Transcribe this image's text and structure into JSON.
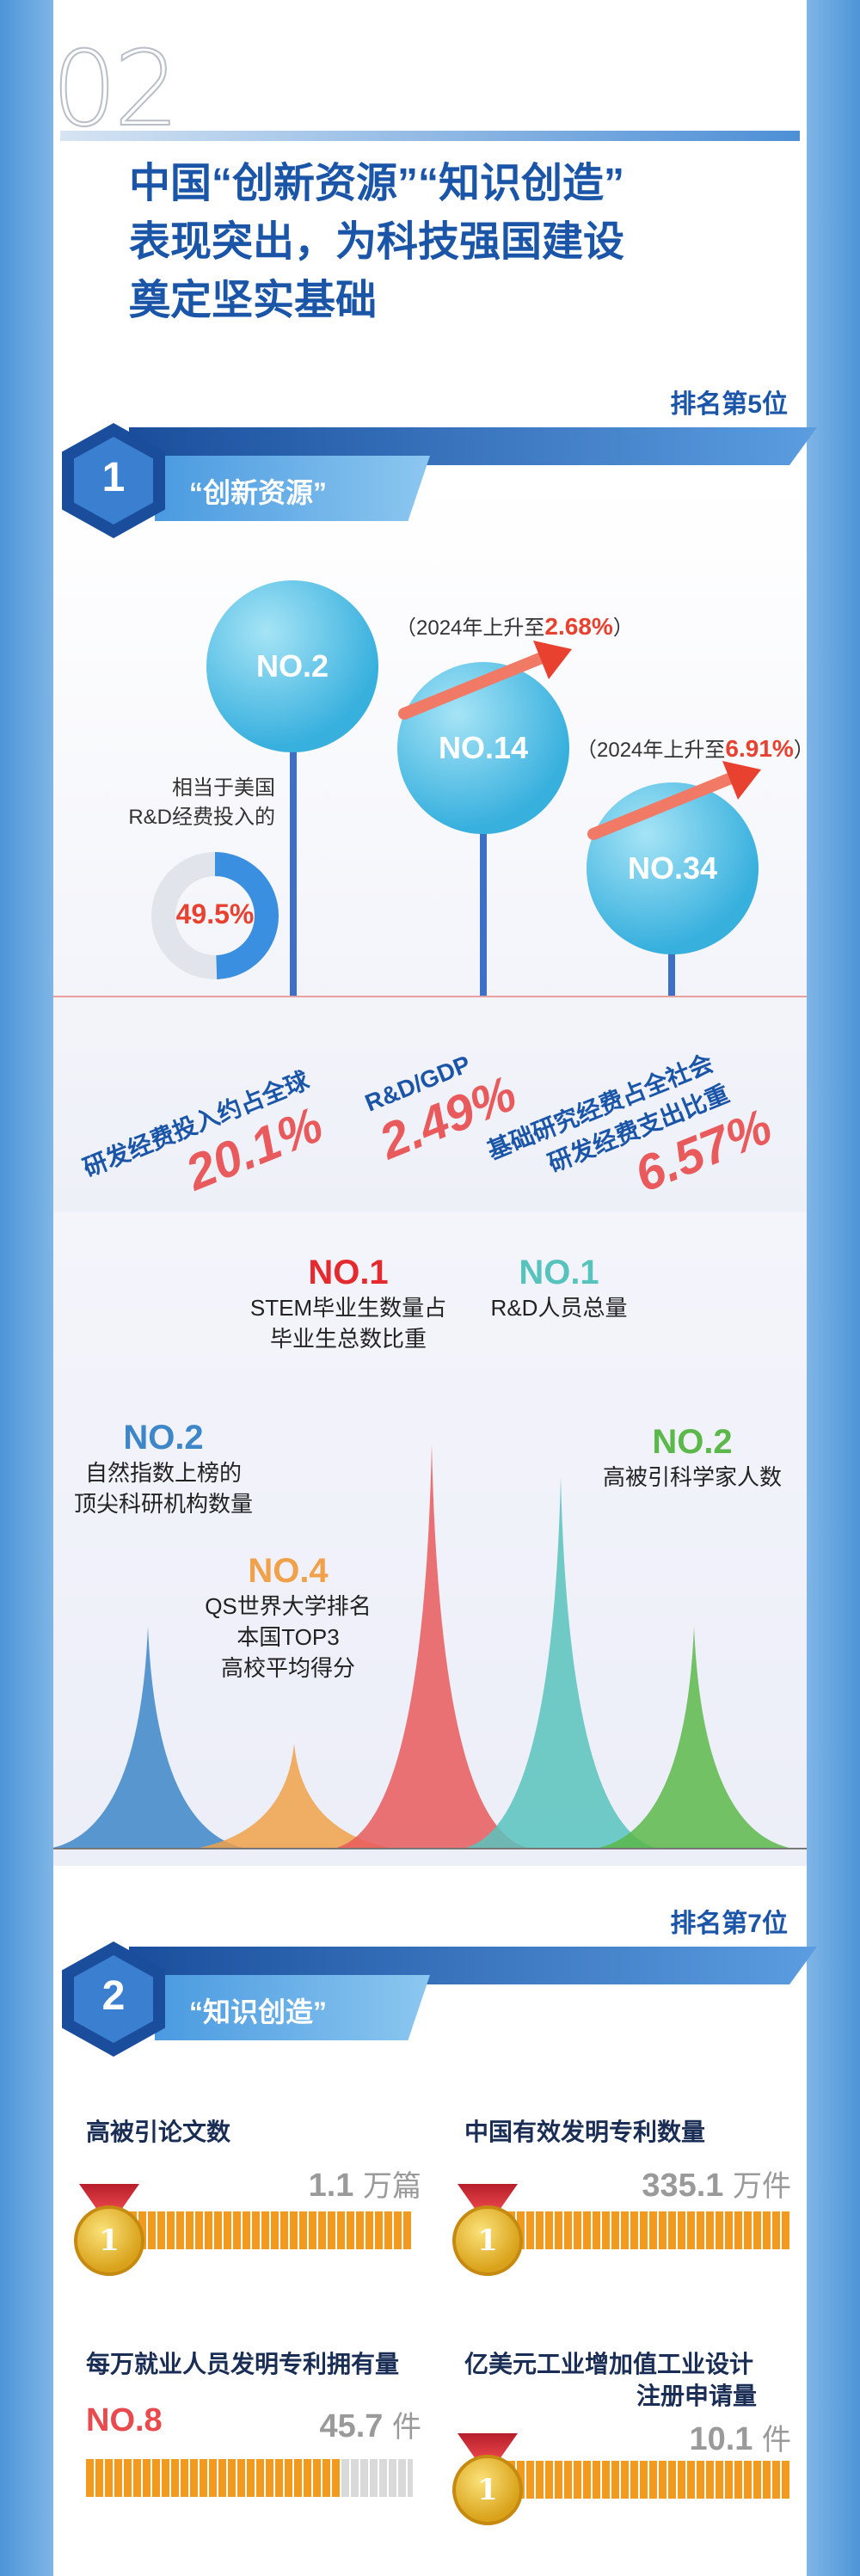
{
  "section_number": "02",
  "headline": [
    "中国“创新资源”“知识创造”",
    "表现突出，为科技强国建设",
    "奠定坚实基础"
  ],
  "section1": {
    "rank": "排名第5位",
    "index": "1",
    "title": "“创新资源”",
    "circles": [
      {
        "rank": "NO.2"
      },
      {
        "rank": "NO.14",
        "note": "（2024年上升至",
        "highlight": "2.68%",
        "close": "）"
      },
      {
        "rank": "NO.34",
        "note": "（2024年上升至",
        "highlight": "6.91%",
        "close": "）"
      }
    ],
    "donut": {
      "caption": [
        "相当于美国",
        "R&D经费投入的"
      ],
      "value": "49.5%",
      "fraction": 0.495
    },
    "metrics": [
      {
        "label": "研发经费投入约占全球",
        "value": "20.1%"
      },
      {
        "label": "R&D/GDP",
        "value": "2.49%"
      },
      {
        "label": "基础研究经费占全社会",
        "label2": "研发经费支出比重",
        "value": "6.57%"
      }
    ]
  },
  "peaks": [
    {
      "rank": "NO.2",
      "text": [
        "自然指数上榜的",
        "顶尖科研机构数量"
      ],
      "color": "#3d86c8",
      "height": 0.55
    },
    {
      "rank": "NO.4",
      "text": [
        "QS世界大学排名",
        "本国TOP3",
        "高校平均得分"
      ],
      "color": "#f0a14a",
      "height": 0.26
    },
    {
      "rank": "NO.1",
      "text": [
        "STEM毕业生数量占",
        "毕业生总数比重"
      ],
      "color": "#e85a5c",
      "height": 1.0
    },
    {
      "rank": "NO.1",
      "text": [
        "R&D人员总量"
      ],
      "color": "#58c3bd",
      "height": 0.92
    },
    {
      "rank": "NO.2",
      "text": [
        "高被引科学家人数"
      ],
      "color": "#5cb84a",
      "height": 0.55
    }
  ],
  "section2": {
    "rank": "排名第7位",
    "index": "2",
    "title": "“知识创造”",
    "stats": [
      {
        "title": "高被引论文数",
        "value": "1.1",
        "unit": "万篇",
        "rank_label": "1",
        "fill": 1.0
      },
      {
        "title": "中国有效发明专利数量",
        "value": "335.1",
        "unit": "万件",
        "rank_label": "1",
        "fill": 1.0
      },
      {
        "title": "每万就业人员发明专利拥有量",
        "value": "45.7",
        "unit": "件",
        "rank_label": "NO.8",
        "fill": 0.78
      },
      {
        "title": "亿美元工业增加值工业设计",
        "title2": "注册申请量",
        "value": "10.1",
        "unit": "件",
        "rank_label": "1",
        "fill": 1.0
      }
    ]
  },
  "colors": {
    "frame": "#4d95d8",
    "heading_blue": "#1a55a8",
    "accent_red": "#e85a5c",
    "bar_orange": "#f29a1d"
  }
}
